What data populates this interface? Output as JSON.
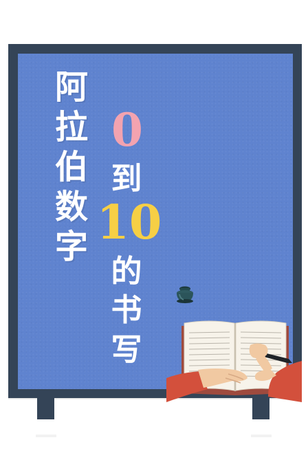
{
  "poster": {
    "title_chars": [
      "阿",
      "拉",
      "伯",
      "数",
      "字"
    ],
    "number_start": "0",
    "connector": "到",
    "number_end": "10",
    "tail_chars": [
      "的",
      "书",
      "写"
    ]
  },
  "colors": {
    "board": "#5f83cf",
    "frame": "#344457",
    "zero": "#f3a3b0",
    "ten": "#f6cf45",
    "text": "#ffffff"
  },
  "icons": [
    "inkpot-icon",
    "pen-icon",
    "open-book-icon",
    "writing-hand-icon"
  ]
}
